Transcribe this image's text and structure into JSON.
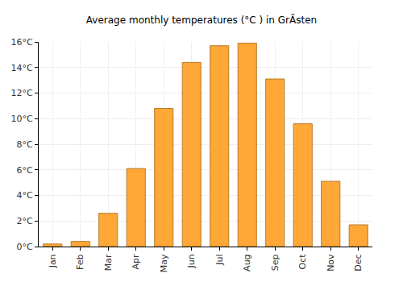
{
  "chart_data": {
    "type": "bar",
    "title": "Average monthly temperatures (°C ) in GrĂsten",
    "categories": [
      "Jan",
      "Feb",
      "Mar",
      "Apr",
      "May",
      "Jun",
      "Jul",
      "Aug",
      "Sep",
      "Oct",
      "Nov",
      "Dec"
    ],
    "values": [
      0.2,
      0.4,
      2.6,
      6.1,
      10.8,
      14.4,
      15.7,
      15.9,
      13.1,
      9.6,
      5.1,
      1.7
    ],
    "color": "#ffa838",
    "ylim": [
      0,
      16
    ],
    "yticks": [
      {
        "value": 0,
        "label": "0°C"
      },
      {
        "value": 2,
        "label": "2°C"
      },
      {
        "value": 4,
        "label": "4°C"
      },
      {
        "value": 6,
        "label": "6°C"
      },
      {
        "value": 8,
        "label": "8°C"
      },
      {
        "value": 10,
        "label": "10°C"
      },
      {
        "value": 12,
        "label": "12°C"
      },
      {
        "value": 14,
        "label": "14°C"
      },
      {
        "value": 16,
        "label": "16°C"
      }
    ],
    "grid": true
  }
}
